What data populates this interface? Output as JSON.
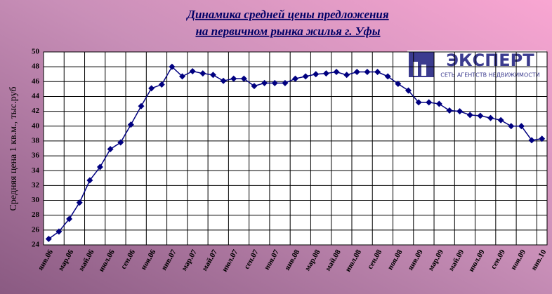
{
  "chart_data": {
    "type": "line",
    "title": [
      "Динамика средней цены предложения",
      "на первичном рынка жилья г. Уфы"
    ],
    "y_label": "Средняя цена 1 кв.м., тыс.руб",
    "logo_title": "ЭКСПЕРТ",
    "logo_subtitle": "СЕТЬ АГЕНТСТВ НЕДВИЖИМОСТИ",
    "categories": [
      "янв.06",
      null,
      "мар.06",
      null,
      "май.06",
      null,
      "июл.06",
      null,
      "сен.06",
      null,
      "ноя.06",
      null,
      "янв.07",
      null,
      "мар.07",
      null,
      "май.07",
      null,
      "июл.07",
      null,
      "сен.07",
      null,
      "ноя.07",
      null,
      "янв.08",
      null,
      "мар.08",
      null,
      "май.08",
      null,
      "июл.08",
      null,
      "сен.08",
      null,
      "ноя.08",
      null,
      "янв.09",
      null,
      "мар.09",
      null,
      "май.09",
      null,
      "июл.09",
      null,
      "сен.09",
      null,
      "ноя.09",
      null,
      "янв.10"
    ],
    "series": [
      {
        "color": "#000080",
        "values": [
          24.8,
          25.8,
          27.5,
          29.7,
          32.7,
          34.5,
          36.9,
          37.8,
          40.2,
          42.7,
          45.1,
          45.6,
          48.0,
          46.7,
          47.4,
          47.1,
          46.9,
          46.1,
          46.4,
          46.4,
          45.4,
          45.8,
          45.8,
          45.8,
          46.4,
          46.7,
          47.0,
          47.1,
          47.3,
          46.9,
          47.3,
          47.3,
          47.3,
          46.7,
          45.7,
          44.8,
          43.2,
          43.2,
          43.0,
          42.1,
          42.0,
          41.5,
          41.4,
          41.1,
          40.8,
          40.0,
          40.0,
          38.1,
          38.3
        ]
      }
    ],
    "ylim": [
      24,
      50
    ],
    "yticks": [
      24,
      26,
      28,
      30,
      32,
      34,
      36,
      38,
      40,
      42,
      44,
      46,
      48,
      50
    ],
    "grid": true
  }
}
